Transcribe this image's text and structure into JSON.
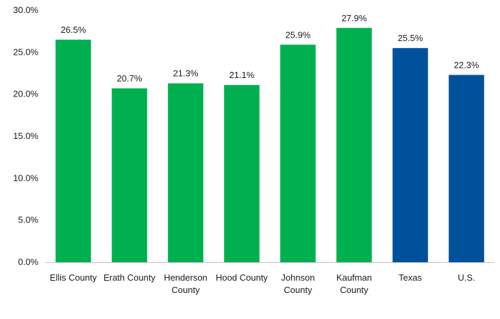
{
  "chart_data": {
    "type": "bar",
    "title": "",
    "xlabel": "",
    "ylabel": "",
    "ylim": [
      0,
      30
    ],
    "yticks": [
      "0.0%",
      "5.0%",
      "10.0%",
      "15.0%",
      "20.0%",
      "25.0%",
      "30.0%"
    ],
    "ytick_values": [
      0,
      5,
      10,
      15,
      20,
      25,
      30
    ],
    "grid": false,
    "categories": [
      [
        "Ellis County"
      ],
      [
        "Erath County"
      ],
      [
        "Henderson",
        "County"
      ],
      [
        "Hood County"
      ],
      [
        "Johnson",
        "County"
      ],
      [
        "Kaufman",
        "County"
      ],
      [
        "Texas"
      ],
      [
        "U.S."
      ]
    ],
    "values": [
      26.5,
      20.7,
      21.3,
      21.1,
      25.9,
      27.9,
      25.5,
      22.3
    ],
    "data_labels": [
      "26.5%",
      "20.7%",
      "21.3%",
      "21.1%",
      "25.9%",
      "27.9%",
      "25.5%",
      "22.3%"
    ],
    "bar_colors": [
      "#00b050",
      "#00b050",
      "#00b050",
      "#00b050",
      "#00b050",
      "#00b050",
      "#00519c",
      "#00519c"
    ],
    "axis_color": "#bfbfbf"
  }
}
